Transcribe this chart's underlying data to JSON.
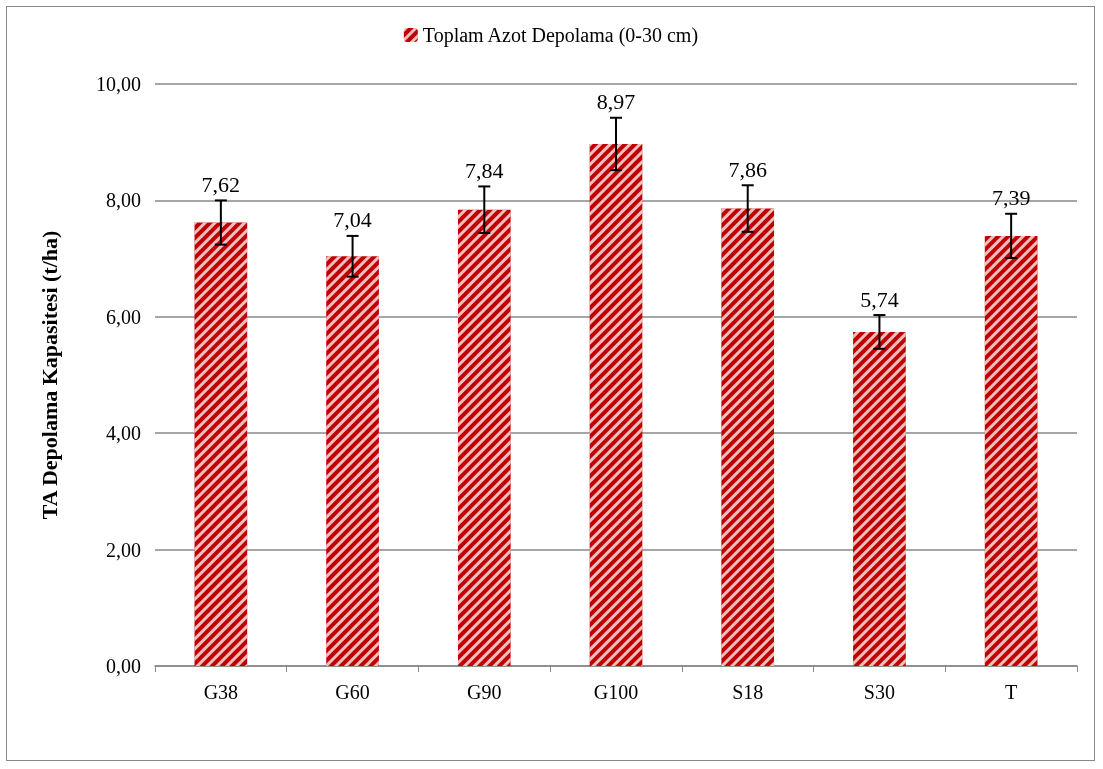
{
  "chart_data": {
    "type": "bar",
    "ylabel": "TA Depolama Kapasitesi (t/ha)",
    "categories": [
      "G38",
      "G60",
      "G90",
      "G100",
      "S18",
      "S30",
      "T"
    ],
    "series": [
      {
        "name": "Toplam Azot Depolama (0-30 cm)",
        "color": "#c00000",
        "values": [
          7.62,
          7.04,
          7.84,
          8.97,
          7.86,
          5.74,
          7.39
        ],
        "errors": [
          0.38,
          0.35,
          0.4,
          0.45,
          0.4,
          0.29,
          0.38
        ],
        "value_labels": [
          "7,62",
          "7,04",
          "7,84",
          "8,97",
          "7,86",
          "5,74",
          "7,39"
        ]
      }
    ],
    "ylim": [
      0,
      10
    ],
    "yticks": [
      {
        "value": 0,
        "label": "0,00"
      },
      {
        "value": 2,
        "label": "2,00"
      },
      {
        "value": 4,
        "label": "4,00"
      },
      {
        "value": 6,
        "label": "6,00"
      },
      {
        "value": 8,
        "label": "8,00"
      },
      {
        "value": 10,
        "label": "10,00"
      }
    ],
    "grid": "y",
    "legend": "top"
  }
}
